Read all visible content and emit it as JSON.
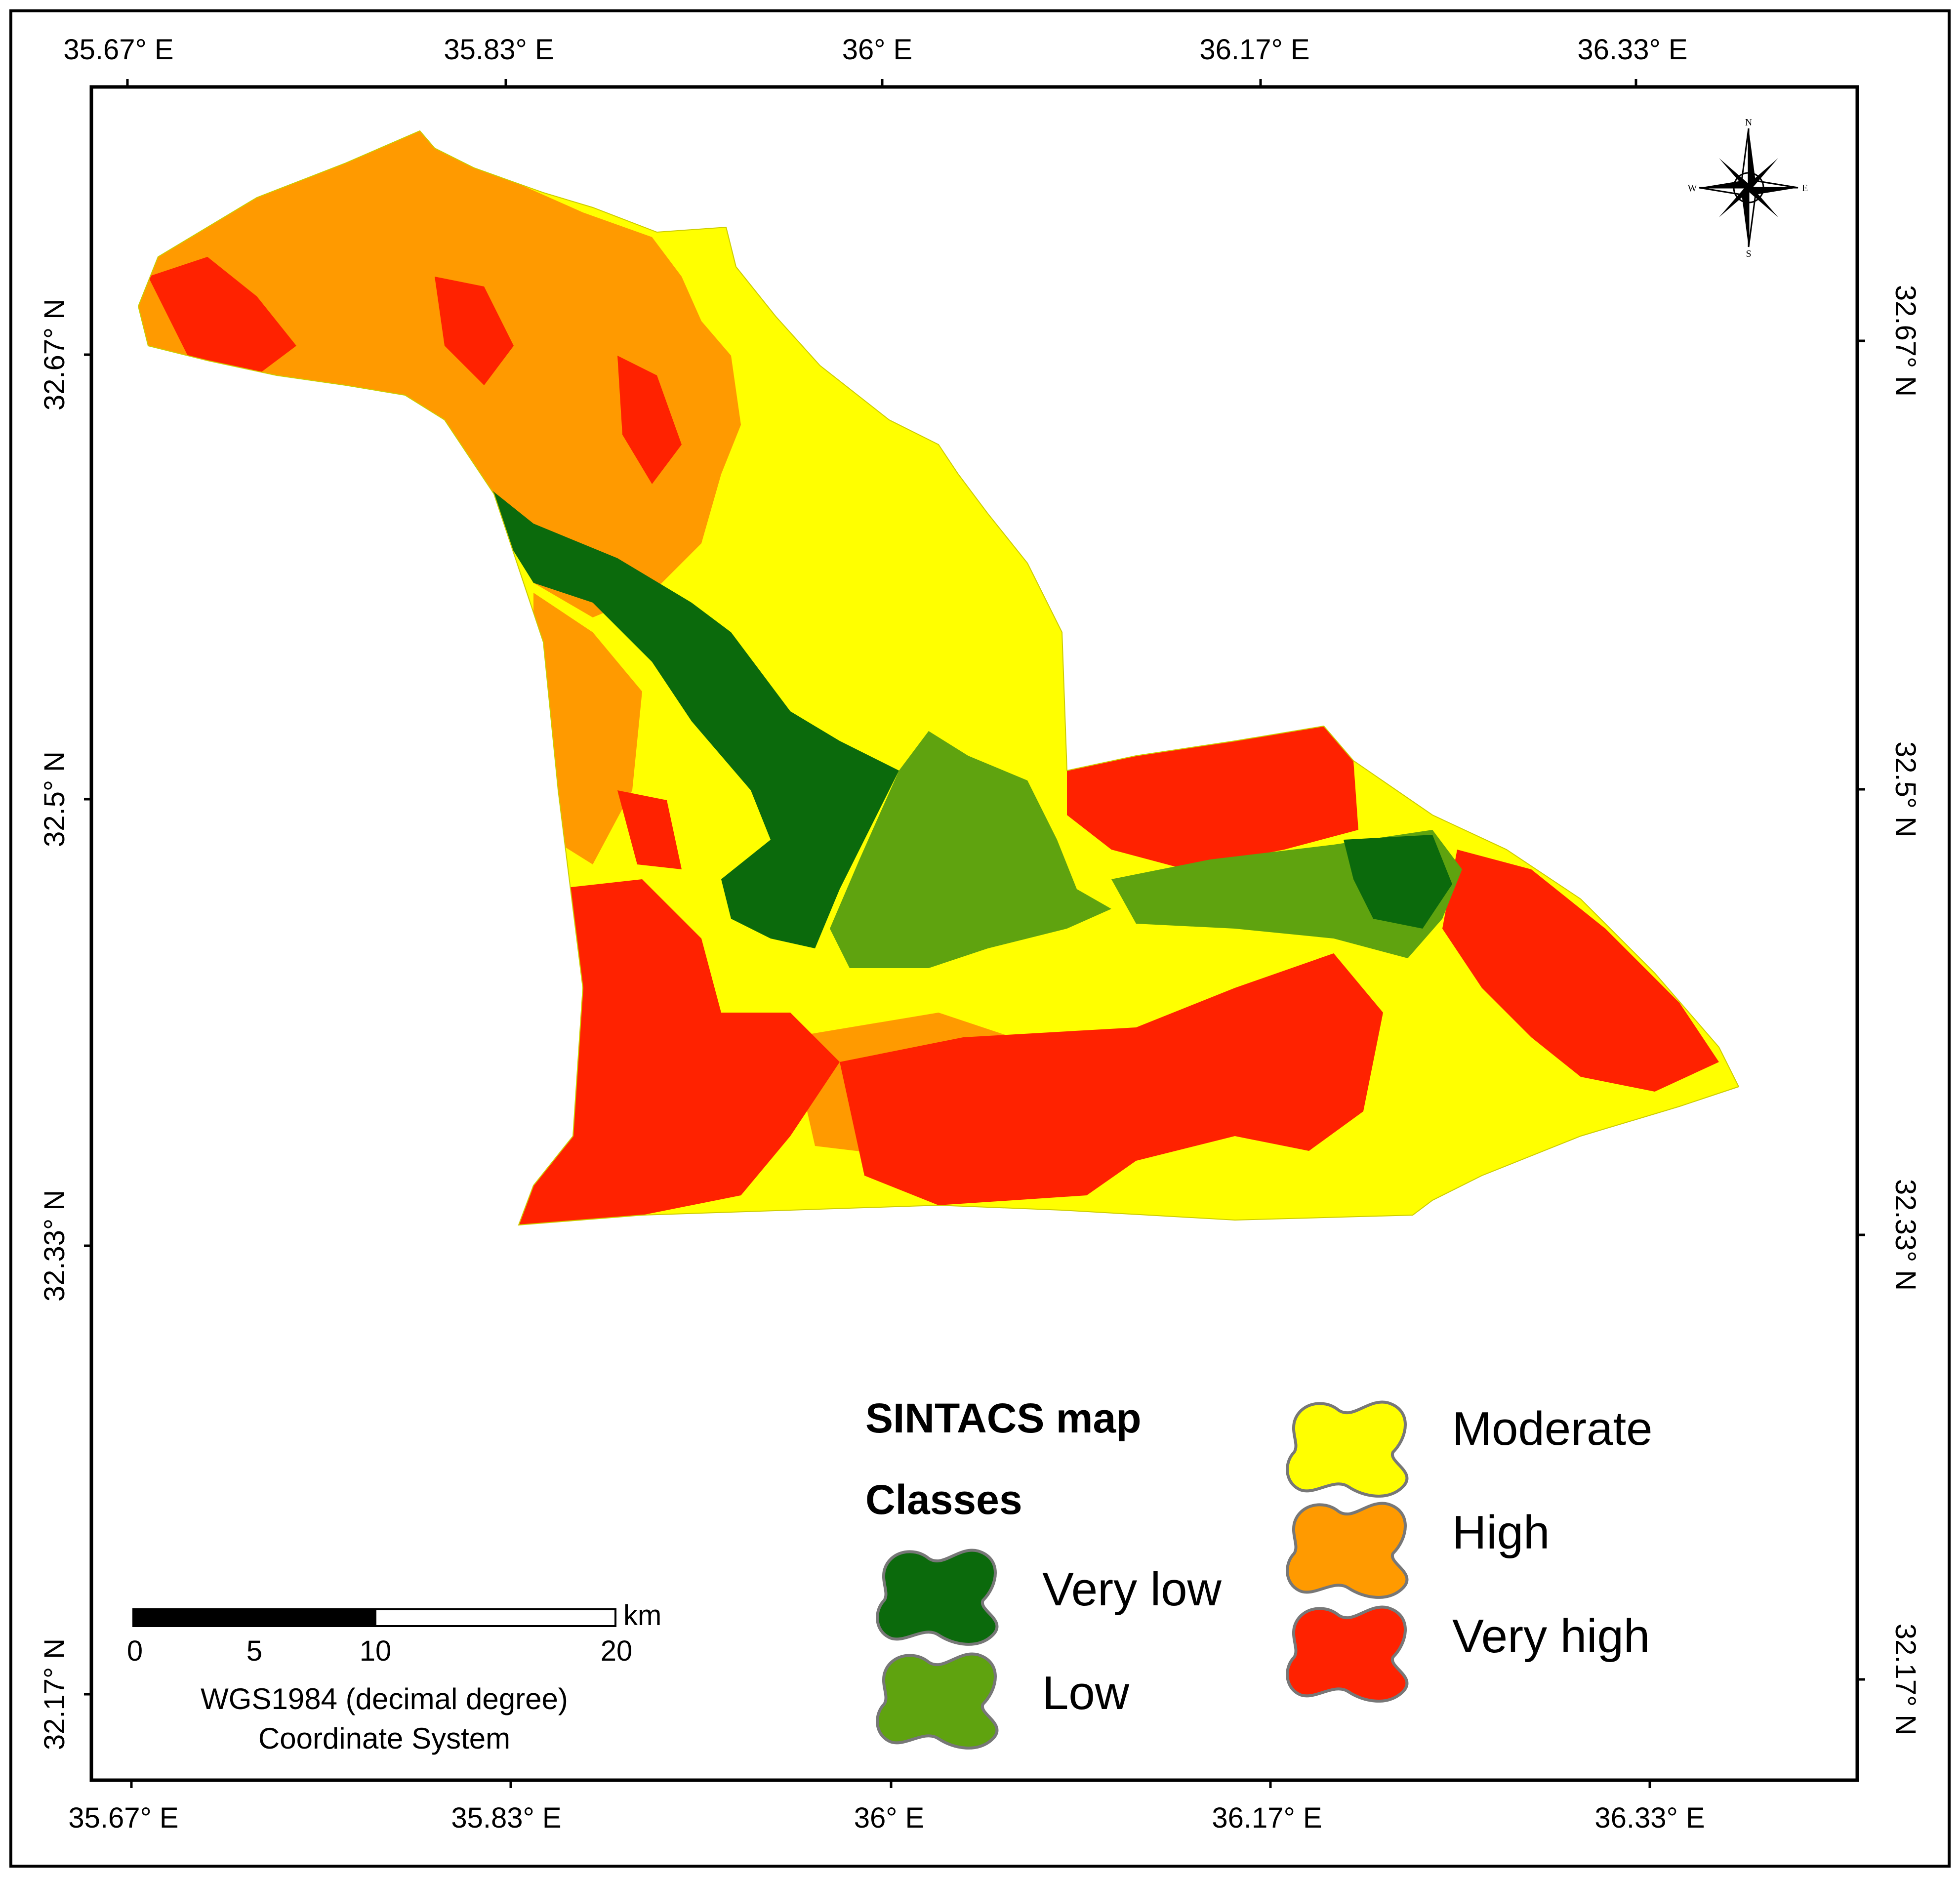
{
  "colors": {
    "very_low": "#0b6a0c",
    "low": "#5fa30f",
    "moderate": "#ffff00",
    "high": "#ff9a00",
    "very_high": "#ff2200",
    "frame": "#000000"
  },
  "axes": {
    "longitude_labels": [
      "35.67° E",
      "35.83° E",
      "36° E",
      "36.17° E",
      "36.33° E"
    ],
    "latitude_labels": [
      "32.67° N",
      "32.5° N",
      "32.33° N",
      "32.17° N"
    ]
  },
  "legend": {
    "title": "SINTACS map",
    "subtitle": "Classes",
    "classes": [
      {
        "label": "Very low",
        "color_key": "very_low"
      },
      {
        "label": "Low",
        "color_key": "low"
      },
      {
        "label": "Moderate",
        "color_key": "moderate"
      },
      {
        "label": "High",
        "color_key": "high"
      },
      {
        "label": "Very high",
        "color_key": "very_high"
      }
    ]
  },
  "scale_bar": {
    "ticks": [
      "0",
      "5",
      "10",
      "20"
    ],
    "unit": "km"
  },
  "coordinate_system": {
    "line1": "WGS1984 (decimal degree)",
    "line2": "Coordinate System"
  },
  "north_arrow": {
    "n": "N",
    "s": "S",
    "e": "E",
    "w": "W",
    "icon": "compass-rose-icon"
  }
}
